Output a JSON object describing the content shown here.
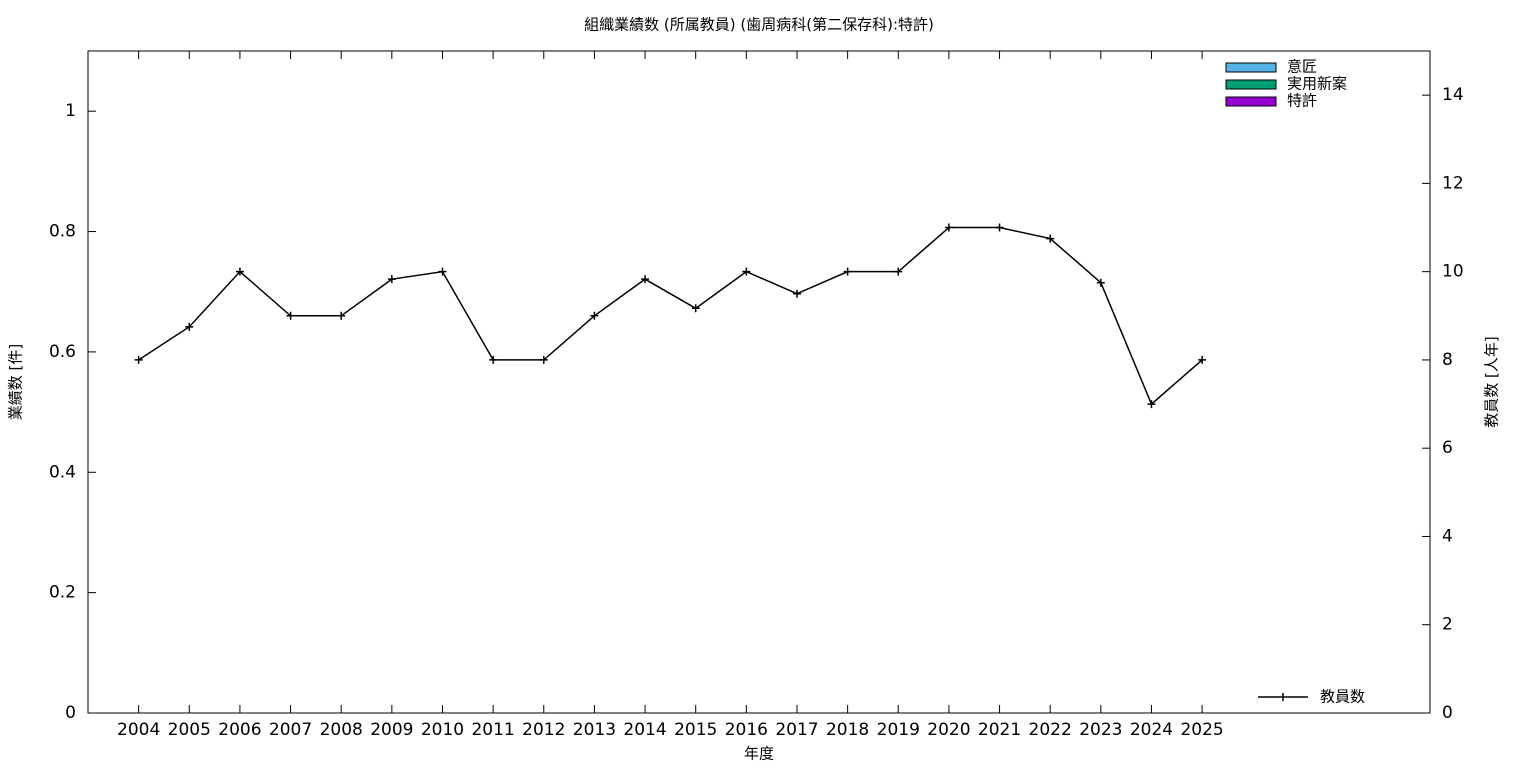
{
  "chart_data": {
    "type": "bar",
    "title": "組織業績数 (所属教員) (歯周病科(第二保存科):特許)",
    "x_label": "年度",
    "y_label": "業績数 [件]",
    "y2_label": "教員数 [人年]",
    "x": [
      2004,
      2005,
      2006,
      2007,
      2008,
      2009,
      2010,
      2011,
      2012,
      2013,
      2014,
      2015,
      2016,
      2017,
      2018,
      2019,
      2020,
      2021,
      2022,
      2023,
      2024,
      2025
    ],
    "xlim": [
      2003,
      2029.5
    ],
    "xticks": [
      2004,
      2005,
      2006,
      2007,
      2008,
      2009,
      2010,
      2011,
      2012,
      2013,
      2014,
      2015,
      2016,
      2017,
      2018,
      2019,
      2020,
      2021,
      2022,
      2023,
      2024,
      2025
    ],
    "ylim": [
      0,
      1.1
    ],
    "yticks": [
      0,
      0.2,
      0.4,
      0.6,
      0.8,
      1
    ],
    "y2lim": [
      0,
      15
    ],
    "y2ticks": [
      0,
      2,
      4,
      6,
      8,
      10,
      12,
      14
    ],
    "series": [
      {
        "name": "意匠",
        "type": "bar",
        "color": "#56b4e9",
        "values": [
          0,
          0,
          0,
          0,
          0,
          0,
          0,
          0,
          0,
          0,
          0,
          0,
          0,
          0,
          0,
          0,
          0,
          0,
          0,
          0,
          0,
          0
        ]
      },
      {
        "name": "実用新案",
        "type": "bar",
        "color": "#009e73",
        "values": [
          0,
          0,
          0,
          0,
          0,
          0,
          0,
          0,
          0,
          0,
          0,
          0,
          0,
          0,
          0,
          0,
          0,
          0,
          0,
          0,
          0,
          0
        ]
      },
      {
        "name": "特許",
        "type": "bar",
        "color": "#9400d3",
        "values": [
          0,
          0,
          0,
          0,
          0,
          0,
          0,
          0,
          0,
          0,
          0,
          0,
          0,
          0,
          0,
          0,
          0,
          0,
          0,
          0,
          0,
          0
        ]
      },
      {
        "name": "教員数",
        "type": "line",
        "axis": "y2",
        "color": "#000000",
        "values": [
          8,
          8.75,
          10,
          9,
          9,
          9.83,
          10,
          8,
          8,
          9,
          9.83,
          9.17,
          10,
          9.5,
          10,
          10,
          11,
          11,
          10.75,
          9.75,
          7,
          8
        ]
      }
    ]
  }
}
